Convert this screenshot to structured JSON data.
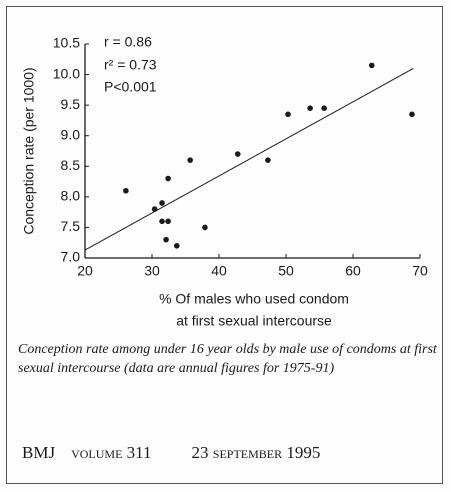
{
  "chart_data": {
    "type": "scatter",
    "x_label": [
      "% Of males who used condom",
      "at first sexual intercourse"
    ],
    "y_label": "Conception rate (per 1000)",
    "annotations": [
      "r = 0.86",
      "r² = 0.73",
      "P<0.001"
    ],
    "x": [
      26.1,
      30.4,
      31.5,
      32.4,
      31.5,
      32.4,
      32.1,
      33.7,
      35.7,
      37.9,
      42.8,
      47.3,
      50.3,
      53.6,
      55.7,
      62.8,
      68.8
    ],
    "y": [
      8.1,
      7.8,
      7.9,
      8.3,
      7.6,
      7.6,
      7.3,
      7.2,
      8.6,
      7.5,
      8.7,
      8.6,
      9.35,
      9.45,
      9.45,
      10.15,
      9.35
    ],
    "color": "#1a1a1a",
    "fit_line": {
      "x": [
        20,
        69
      ],
      "y": [
        7.13,
        10.1
      ]
    },
    "xlim": [
      20,
      70
    ],
    "xticks": [
      20,
      30,
      40,
      50,
      60,
      70
    ],
    "ylim": [
      7,
      10.5
    ],
    "yticks": [
      {
        "value": 7,
        "label": "7.0"
      },
      7.5,
      {
        "value": 8,
        "label": "8.0"
      },
      8.5,
      {
        "value": 9,
        "label": "9.0"
      },
      9.5,
      {
        "value": 10,
        "label": "10.0"
      },
      10.5
    ],
    "grid": false
  },
  "caption": "Conception rate among under 16 year olds by male use of condoms at first sexual intercourse (data are annual figures for 1975-91)",
  "footer": {
    "journal": "BMJ",
    "volume": "VOLUME 311",
    "date": "23 SEPTEMBER 1995"
  }
}
